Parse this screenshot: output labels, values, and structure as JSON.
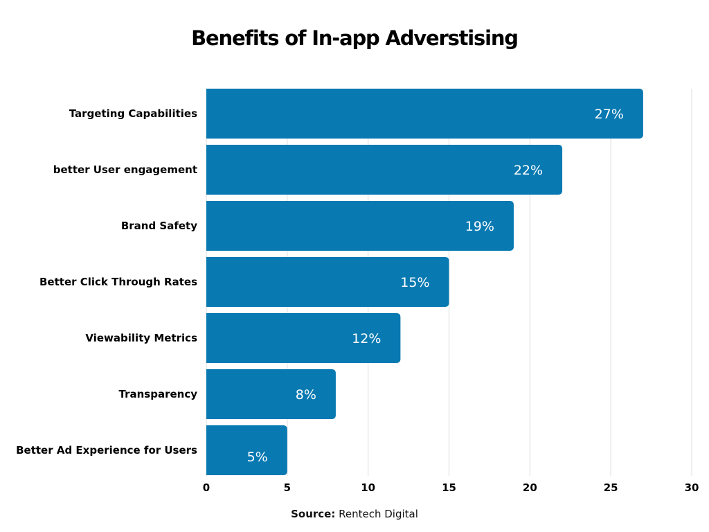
{
  "chart_data": {
    "type": "bar",
    "orientation": "horizontal",
    "title": "Benefits of In-app Adverstising",
    "categories": [
      "Targeting Capabilities",
      "better User engagement",
      "Brand Safety",
      "Better Click Through Rates",
      "Viewability Metrics",
      "Transparency",
      "Better Ad Experience for Users"
    ],
    "values": [
      27,
      22,
      19,
      15,
      12,
      8,
      5
    ],
    "data_labels": [
      "27%",
      "22%",
      "19%",
      "15%",
      "12%",
      "8%",
      "5%"
    ],
    "xlim": [
      0,
      30
    ],
    "xticks": [
      0,
      5,
      10,
      15,
      20,
      25,
      30
    ],
    "grid": true,
    "bar_color": "#0879b1",
    "source_label": "Source:",
    "source_text": "Rentech Digital"
  }
}
